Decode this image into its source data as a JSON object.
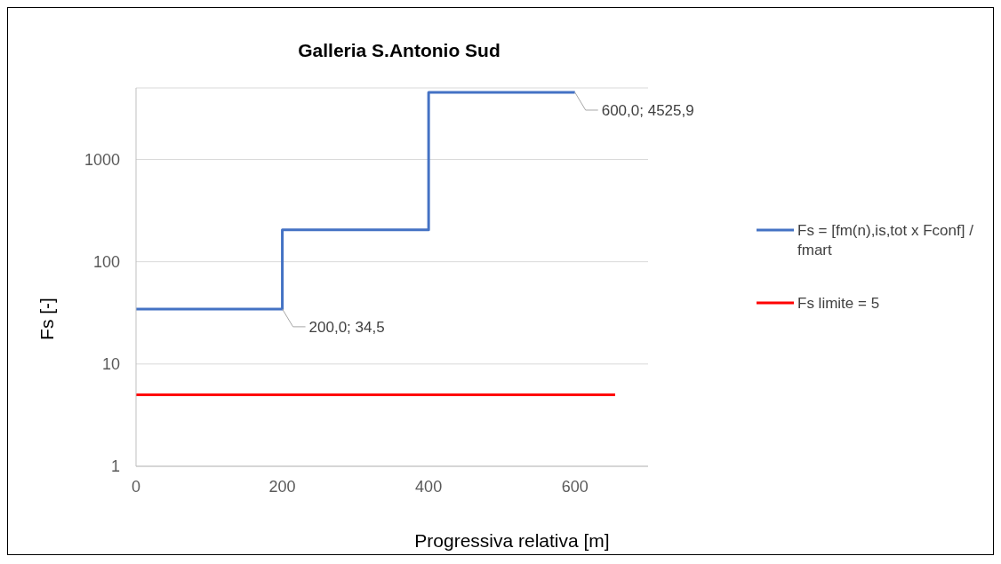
{
  "chart_data": {
    "type": "step",
    "title": "Galleria S.Antonio Sud",
    "xlabel": "Progressiva relativa [m]",
    "ylabel": "Fs [-]",
    "series": [
      {
        "name": "Fs = [fm(n),is,tot x Fconf] / fmart",
        "color": "#4472c4",
        "x": [
          0,
          200,
          400,
          600
        ],
        "values": [
          34.5,
          205,
          4525.9,
          4525.9
        ]
      },
      {
        "name": "Fs limite = 5",
        "color": "#ff0000",
        "x": [
          0,
          655
        ],
        "values": [
          5,
          5
        ]
      }
    ],
    "annotations": [
      {
        "text": "200,0; 34,5",
        "x": 200,
        "y": 34.5
      },
      {
        "text": "600,0; 4525,9",
        "x": 600,
        "y": 4525.9
      }
    ],
    "xlim": [
      0,
      700
    ],
    "xticks": [
      0,
      200,
      400,
      600
    ],
    "ylim": [
      1,
      5000
    ],
    "yticks": [
      1,
      10,
      100,
      1000
    ],
    "log": "y",
    "grid": "y",
    "legend": "right",
    "marker": "none",
    "line_style": "solid"
  }
}
